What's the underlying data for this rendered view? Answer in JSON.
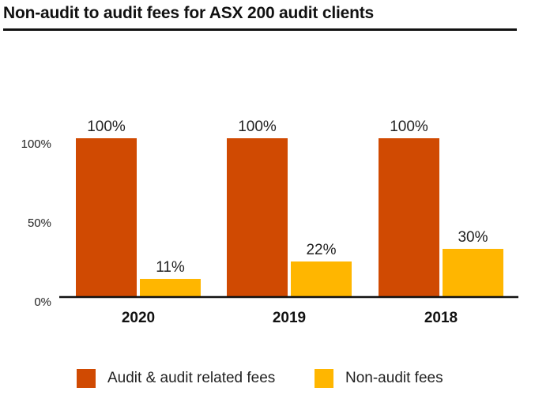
{
  "chart_data": {
    "type": "bar",
    "title": "Non-audit to audit fees for ASX 200 audit clients",
    "categories": [
      "2020",
      "2019",
      "2018"
    ],
    "series": [
      {
        "name": "Audit & audit related fees",
        "values": [
          100,
          100,
          100
        ],
        "labels": [
          "100%",
          "100%",
          "100%"
        ],
        "color": "#D04A02"
      },
      {
        "name": "Non-audit fees",
        "values": [
          11,
          22,
          30
        ],
        "labels": [
          "11%",
          "22%",
          "30%"
        ],
        "color": "#FFB600"
      }
    ],
    "yticks": [
      {
        "value": 0,
        "label": "0%"
      },
      {
        "value": 50,
        "label": "50%"
      },
      {
        "value": 100,
        "label": "100%"
      }
    ],
    "ylim": [
      0,
      100
    ],
    "grid": false,
    "legend": "bottom"
  }
}
